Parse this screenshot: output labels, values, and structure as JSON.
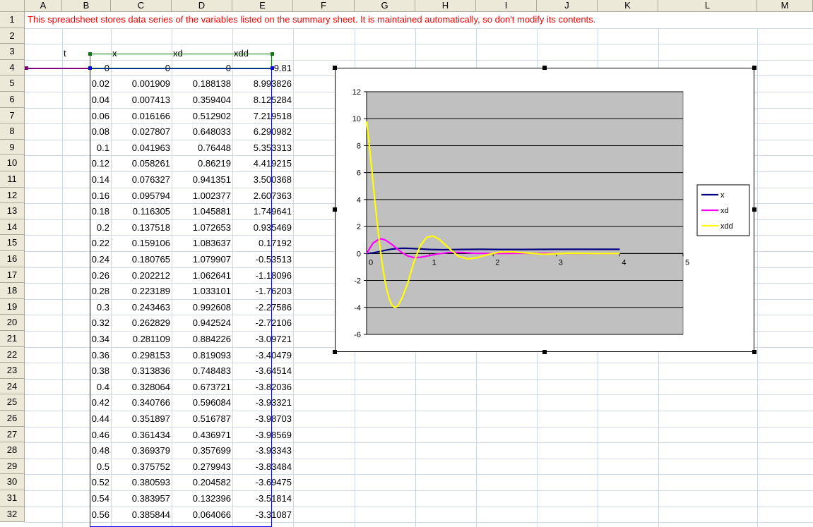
{
  "columns": [
    "A",
    "B",
    "C",
    "D",
    "E",
    "F",
    "G",
    "H",
    "I",
    "J",
    "K",
    "L",
    "M"
  ],
  "rows": [
    "1",
    "2",
    "3",
    "4",
    "5",
    "6",
    "7",
    "8",
    "9",
    "10",
    "11",
    "12",
    "13",
    "14",
    "15",
    "16",
    "17",
    "18",
    "19",
    "20",
    "21",
    "22",
    "23",
    "24",
    "25",
    "26",
    "27",
    "28",
    "29",
    "30",
    "31",
    "32"
  ],
  "note": "This spreadsheet stores data series of the variables listed on the summary sheet. It is maintained automatically, so don't modify its contents.",
  "headers": [
    "t",
    "x",
    "xd",
    "xdd"
  ],
  "table": [
    [
      "0",
      "0",
      "0",
      "9.81"
    ],
    [
      "0.02",
      "0.001909",
      "0.188138",
      "8.993826"
    ],
    [
      "0.04",
      "0.007413",
      "0.359404",
      "8.125284"
    ],
    [
      "0.06",
      "0.016166",
      "0.512902",
      "7.219518"
    ],
    [
      "0.08",
      "0.027807",
      "0.648033",
      "6.290982"
    ],
    [
      "0.1",
      "0.041963",
      "0.76448",
      "5.353313"
    ],
    [
      "0.12",
      "0.058261",
      "0.86219",
      "4.419215"
    ],
    [
      "0.14",
      "0.076327",
      "0.941351",
      "3.500368"
    ],
    [
      "0.16",
      "0.095794",
      "1.002377",
      "2.607363"
    ],
    [
      "0.18",
      "0.116305",
      "1.045881",
      "1.749641"
    ],
    [
      "0.2",
      "0.137518",
      "1.072653",
      "0.935469"
    ],
    [
      "0.22",
      "0.159106",
      "1.083637",
      "0.17192"
    ],
    [
      "0.24",
      "0.180765",
      "1.079907",
      "-0.53513"
    ],
    [
      "0.26",
      "0.202212",
      "1.062641",
      "-1.18096"
    ],
    [
      "0.28",
      "0.223189",
      "1.033101",
      "-1.76203"
    ],
    [
      "0.3",
      "0.243463",
      "0.992608",
      "-2.27586"
    ],
    [
      "0.32",
      "0.262829",
      "0.942524",
      "-2.72106"
    ],
    [
      "0.34",
      "0.281109",
      "0.884226",
      "-3.09721"
    ],
    [
      "0.36",
      "0.298153",
      "0.819093",
      "-3.40479"
    ],
    [
      "0.38",
      "0.313836",
      "0.748483",
      "-3.64514"
    ],
    [
      "0.4",
      "0.328064",
      "0.673721",
      "-3.82036"
    ],
    [
      "0.42",
      "0.340766",
      "0.596084",
      "-3.93321"
    ],
    [
      "0.44",
      "0.351897",
      "0.516787",
      "-3.98703"
    ],
    [
      "0.46",
      "0.361434",
      "0.436971",
      "-3.98569"
    ],
    [
      "0.48",
      "0.369379",
      "0.357699",
      "-3.93343"
    ],
    [
      "0.5",
      "0.375752",
      "0.279943",
      "-3.83484"
    ],
    [
      "0.52",
      "0.380593",
      "0.204582",
      "-3.69475"
    ],
    [
      "0.54",
      "0.383957",
      "0.132396",
      "-3.51814"
    ],
    [
      "0.56",
      "0.385844",
      "0.064066",
      "-3.31087"
    ]
  ],
  "colors": {
    "grid": "#d0d7e5",
    "header_bg": "#ece9d8",
    "note_text": "#ff0000",
    "plot_area": "#c0c0c0",
    "x_series": "#000080",
    "xd_series": "#ff00ff",
    "xdd_series": "#ffff00"
  },
  "chart_data": {
    "type": "line",
    "xlim": [
      0,
      5
    ],
    "ylim": [
      -6,
      12
    ],
    "x_ticks": [
      "0",
      "1",
      "2",
      "3",
      "4",
      "5"
    ],
    "y_ticks": [
      "12",
      "10",
      "8",
      "6",
      "4",
      "2",
      "0",
      "-2",
      "-4",
      "-6"
    ],
    "legend_position": "right",
    "grid": true,
    "series": [
      {
        "name": "x",
        "color": "#000080",
        "points": [
          [
            0,
            0
          ],
          [
            0.1,
            0.042
          ],
          [
            0.2,
            0.138
          ],
          [
            0.3,
            0.243
          ],
          [
            0.4,
            0.328
          ],
          [
            0.5,
            0.376
          ],
          [
            0.6,
            0.39
          ],
          [
            0.7,
            0.375
          ],
          [
            0.8,
            0.35
          ],
          [
            1.0,
            0.3
          ],
          [
            1.2,
            0.28
          ],
          [
            1.5,
            0.3
          ],
          [
            1.8,
            0.31
          ],
          [
            2.1,
            0.3
          ],
          [
            2.5,
            0.3
          ],
          [
            3.0,
            0.31
          ],
          [
            3.5,
            0.31
          ],
          [
            4.0,
            0.31
          ]
        ]
      },
      {
        "name": "xd",
        "color": "#ff00ff",
        "points": [
          [
            0,
            0
          ],
          [
            0.1,
            0.764
          ],
          [
            0.2,
            1.073
          ],
          [
            0.24,
            1.08
          ],
          [
            0.3,
            0.993
          ],
          [
            0.4,
            0.674
          ],
          [
            0.5,
            0.28
          ],
          [
            0.56,
            0.064
          ],
          [
            0.65,
            -0.18
          ],
          [
            0.75,
            -0.3
          ],
          [
            0.85,
            -0.28
          ],
          [
            1.0,
            -0.15
          ],
          [
            1.1,
            -0.05
          ],
          [
            1.3,
            0.08
          ],
          [
            1.5,
            0.08
          ],
          [
            1.7,
            0.02
          ],
          [
            2.0,
            0.0
          ],
          [
            2.5,
            0.02
          ],
          [
            3.0,
            0.0
          ],
          [
            3.5,
            0.0
          ],
          [
            4.0,
            0.0
          ]
        ]
      },
      {
        "name": "xdd",
        "color": "#ffff00",
        "points": [
          [
            0,
            9.81
          ],
          [
            0.04,
            8.125
          ],
          [
            0.08,
            6.291
          ],
          [
            0.1,
            5.353
          ],
          [
            0.14,
            3.5
          ],
          [
            0.18,
            1.75
          ],
          [
            0.2,
            0.935
          ],
          [
            0.24,
            -0.535
          ],
          [
            0.28,
            -1.762
          ],
          [
            0.32,
            -2.721
          ],
          [
            0.36,
            -3.405
          ],
          [
            0.4,
            -3.82
          ],
          [
            0.44,
            -3.987
          ],
          [
            0.46,
            -3.986
          ],
          [
            0.5,
            -3.835
          ],
          [
            0.56,
            -3.311
          ],
          [
            0.65,
            -2.2
          ],
          [
            0.75,
            -0.6
          ],
          [
            0.85,
            0.6
          ],
          [
            0.95,
            1.2
          ],
          [
            1.05,
            1.3
          ],
          [
            1.15,
            1.05
          ],
          [
            1.3,
            0.4
          ],
          [
            1.45,
            -0.2
          ],
          [
            1.6,
            -0.4
          ],
          [
            1.75,
            -0.3
          ],
          [
            1.9,
            -0.1
          ],
          [
            2.1,
            0.1
          ],
          [
            2.3,
            0.12
          ],
          [
            2.5,
            0.05
          ],
          [
            2.8,
            -0.05
          ],
          [
            3.2,
            0.02
          ],
          [
            3.6,
            0.0
          ],
          [
            4.0,
            0.0
          ]
        ]
      }
    ]
  }
}
